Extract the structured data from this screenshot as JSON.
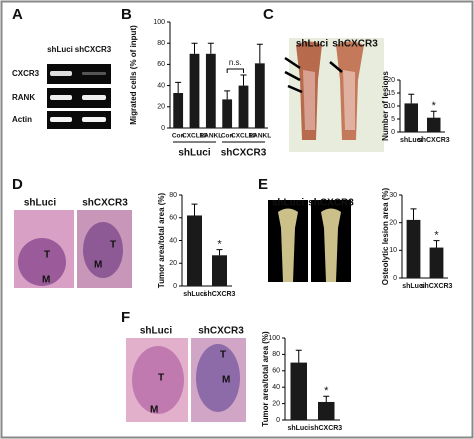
{
  "panel_labels": [
    "A",
    "B",
    "C",
    "D",
    "E",
    "F"
  ],
  "gel": {
    "columns": [
      "shLuci",
      "shCXCR3"
    ],
    "rows": [
      "CXCR3",
      "RANK",
      "Actin"
    ]
  },
  "image_labels": {
    "C": [
      "shLuci",
      "shCXCR3"
    ],
    "D": [
      "shLuci",
      "shCXCR3",
      "T",
      "M",
      "T",
      "M"
    ],
    "E": [
      "shLuci",
      "shCXCR3"
    ],
    "F": [
      "shLuci",
      "shCXCR3",
      "T",
      "M",
      "T",
      "M"
    ]
  },
  "chart_data": [
    {
      "type": "bar",
      "ylabel": "Migrated cells (% of input)",
      "categories": [
        "Con",
        "CXCL10",
        "RANKL",
        "Con",
        "CXCL10",
        "RANKL"
      ],
      "group_labels": [
        "shLuci",
        "shCXCR3"
      ],
      "values": [
        33,
        70,
        70,
        27,
        40,
        61
      ],
      "errors": [
        10,
        10,
        10,
        8,
        10,
        18
      ],
      "annotation": "n.s.",
      "color": "#1a1a1a",
      "ylim": [
        0,
        100
      ],
      "yticks": [
        0,
        20,
        40,
        60,
        80,
        100
      ]
    },
    {
      "type": "bar",
      "ylabel": "Number of lesions",
      "categories": [
        "shLuci",
        "shCXCR3"
      ],
      "values": [
        11,
        5.5
      ],
      "errors": [
        3.5,
        2.5
      ],
      "significance": "*",
      "color": "#1a1a1a",
      "ylim": [
        0,
        20
      ],
      "yticks": [
        0,
        5,
        10,
        15,
        20
      ]
    },
    {
      "type": "bar",
      "ylabel": "Tumor area/total area (%)",
      "categories": [
        "shLuci",
        "shCXCR3"
      ],
      "values": [
        62,
        27
      ],
      "errors": [
        10,
        5
      ],
      "significance": "*",
      "color": "#1a1a1a",
      "ylim": [
        0,
        80
      ],
      "yticks": [
        0,
        20,
        40,
        60,
        80
      ]
    },
    {
      "type": "bar",
      "ylabel": "Osteolytic lesion area (%)",
      "categories": [
        "shLuci",
        "shCXCR3"
      ],
      "values": [
        21,
        11
      ],
      "errors": [
        4,
        2.5
      ],
      "significance": "*",
      "color": "#1a1a1a",
      "ylim": [
        0,
        30
      ],
      "yticks": [
        0,
        10,
        20,
        30
      ]
    },
    {
      "type": "bar",
      "ylabel": "Tumor area/total area (%)",
      "categories": [
        "shLuci",
        "shCXCR3"
      ],
      "values": [
        70,
        22
      ],
      "errors": [
        15,
        7
      ],
      "significance": "*",
      "color": "#1a1a1a",
      "ylim": [
        0,
        100
      ],
      "yticks": [
        0,
        20,
        40,
        60,
        80,
        100
      ]
    }
  ]
}
